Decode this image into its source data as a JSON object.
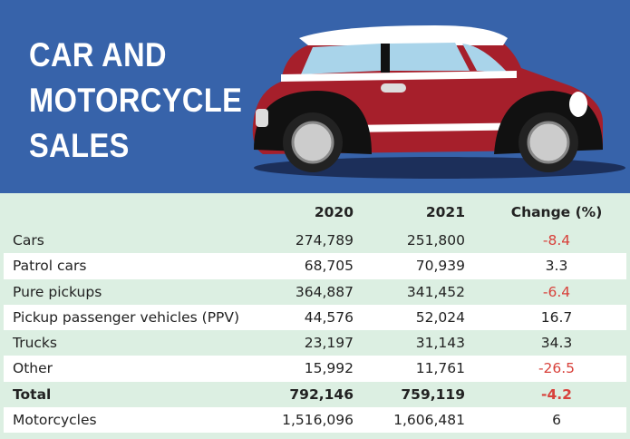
{
  "header": {
    "title_lines": [
      "CAR AND",
      "MOTORCYCLE",
      "SALES"
    ]
  },
  "table": {
    "columns": [
      "2020",
      "2021",
      "Change (%)"
    ],
    "rows": [
      [
        "Cars",
        "274,789",
        "251,800",
        "-8.4"
      ],
      [
        "Patrol cars",
        "68,705",
        "70,939",
        "3.3"
      ],
      [
        "Pure pickups",
        "364,887",
        "341,452",
        "-6.4"
      ],
      [
        "Pickup passenger vehicles (PPV)",
        "44,576",
        "52,024",
        "16.7"
      ],
      [
        "Trucks",
        "23,197",
        "31,143",
        "34.3"
      ],
      [
        "Other",
        "15,992",
        "11,761",
        "-26.5"
      ],
      [
        "Total",
        "792,146",
        "759,119",
        "-4.2"
      ],
      [
        "Motorcycles",
        "1,516,096",
        "1,606,481",
        "6"
      ]
    ]
  }
}
